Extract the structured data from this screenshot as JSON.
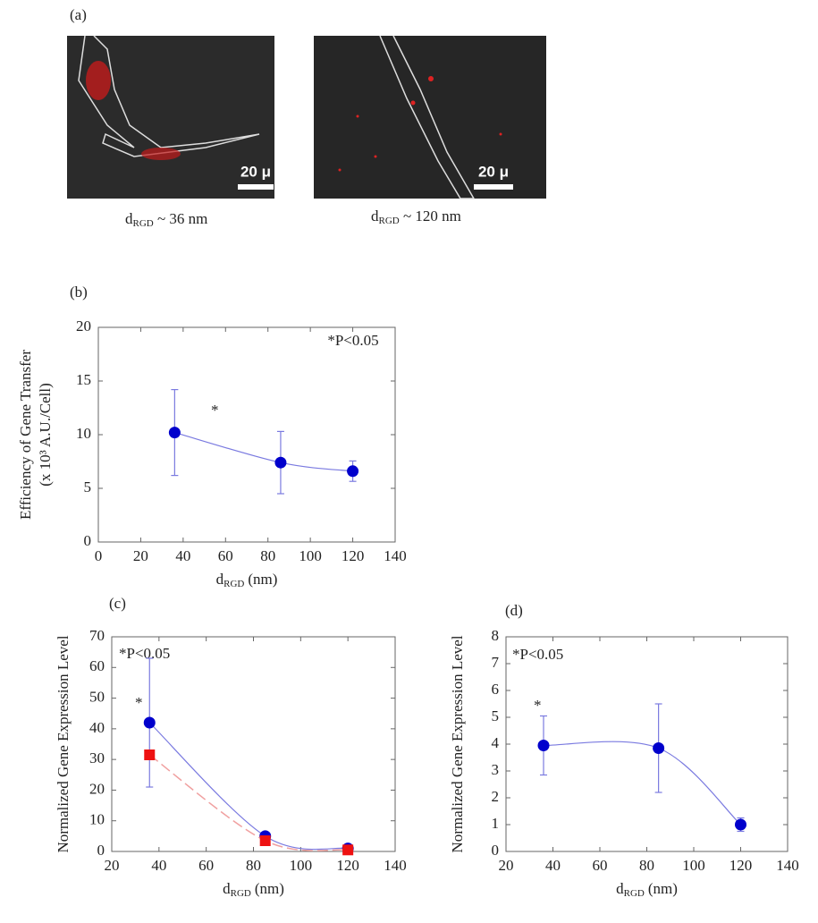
{
  "panel_a": {
    "label": "(a)",
    "images": [
      {
        "scale_bar": "20 μ",
        "caption": "d",
        "caption_sub": "RGD",
        "caption_rest": " ~ 36 nm"
      },
      {
        "scale_bar": "20 μ",
        "caption": "d",
        "caption_sub": "RGD",
        "caption_rest": " ~ 120 nm"
      }
    ]
  },
  "chart_data": [
    {
      "type": "line",
      "label": "(b)",
      "y_label": "Efficiency of Gene Transfer",
      "y_label_2": "(x 10³ A.U./Cell)",
      "x_label": "d",
      "x_label_sub": "RGD",
      "x_label_unit": "(nm)",
      "annotation": "*P<0.05",
      "significance": "*",
      "x": [
        36,
        86,
        120
      ],
      "series": [
        {
          "color": "#0000cc",
          "line_color": "#7a7ae0",
          "marker": "circle",
          "line_style": "solid",
          "values": [
            10.2,
            7.4,
            6.6
          ],
          "errors": [
            4,
            2.9,
            0.95
          ]
        }
      ],
      "xlim": [
        0,
        140
      ],
      "xticks": [
        0,
        20,
        40,
        60,
        80,
        100,
        120,
        140
      ],
      "ylim": [
        0,
        20
      ],
      "yticks": [
        0,
        5,
        10,
        15,
        20
      ]
    },
    {
      "type": "line",
      "label": "(c)",
      "y_label": "Normalized Gene Expression Level",
      "x_label": "d",
      "x_label_sub": "RGD",
      "x_label_unit": "(nm)",
      "annotation": "*P<0.05",
      "significance": "*",
      "x": [
        36,
        85,
        120
      ],
      "series": [
        {
          "color": "#0000cc",
          "line_color": "#7a7ae0",
          "marker": "circle",
          "line_style": "solid",
          "values": [
            42,
            5,
            1
          ],
          "errors": [
            21,
            1,
            0.5
          ]
        },
        {
          "color": "#ee1111",
          "line_color": "#f0a0a0",
          "marker": "square",
          "line_style": "dashed",
          "values": [
            31.5,
            3.5,
            0.5
          ]
        }
      ],
      "xlim": [
        20,
        140
      ],
      "xticks": [
        20,
        40,
        60,
        80,
        100,
        120,
        140
      ],
      "ylim": [
        0,
        70
      ],
      "yticks": [
        0,
        10,
        20,
        30,
        40,
        50,
        60,
        70
      ]
    },
    {
      "type": "line",
      "label": "(d)",
      "y_label": "Normalized Gene Expression Level",
      "x_label": "d",
      "x_label_sub": "RGD",
      "x_label_unit": "(nm)",
      "annotation": "*P<0.05",
      "significance": "*",
      "x": [
        36,
        85,
        120
      ],
      "series": [
        {
          "color": "#0000cc",
          "line_color": "#7a7ae0",
          "marker": "circle",
          "line_style": "solid",
          "values": [
            3.95,
            3.85,
            1.0
          ],
          "errors": [
            1.1,
            1.65,
            0.25
          ]
        }
      ],
      "xlim": [
        20,
        140
      ],
      "xticks": [
        20,
        40,
        60,
        80,
        100,
        120,
        140
      ],
      "ylim": [
        0,
        8
      ],
      "yticks": [
        0,
        1,
        2,
        3,
        4,
        5,
        6,
        7,
        8
      ]
    }
  ]
}
